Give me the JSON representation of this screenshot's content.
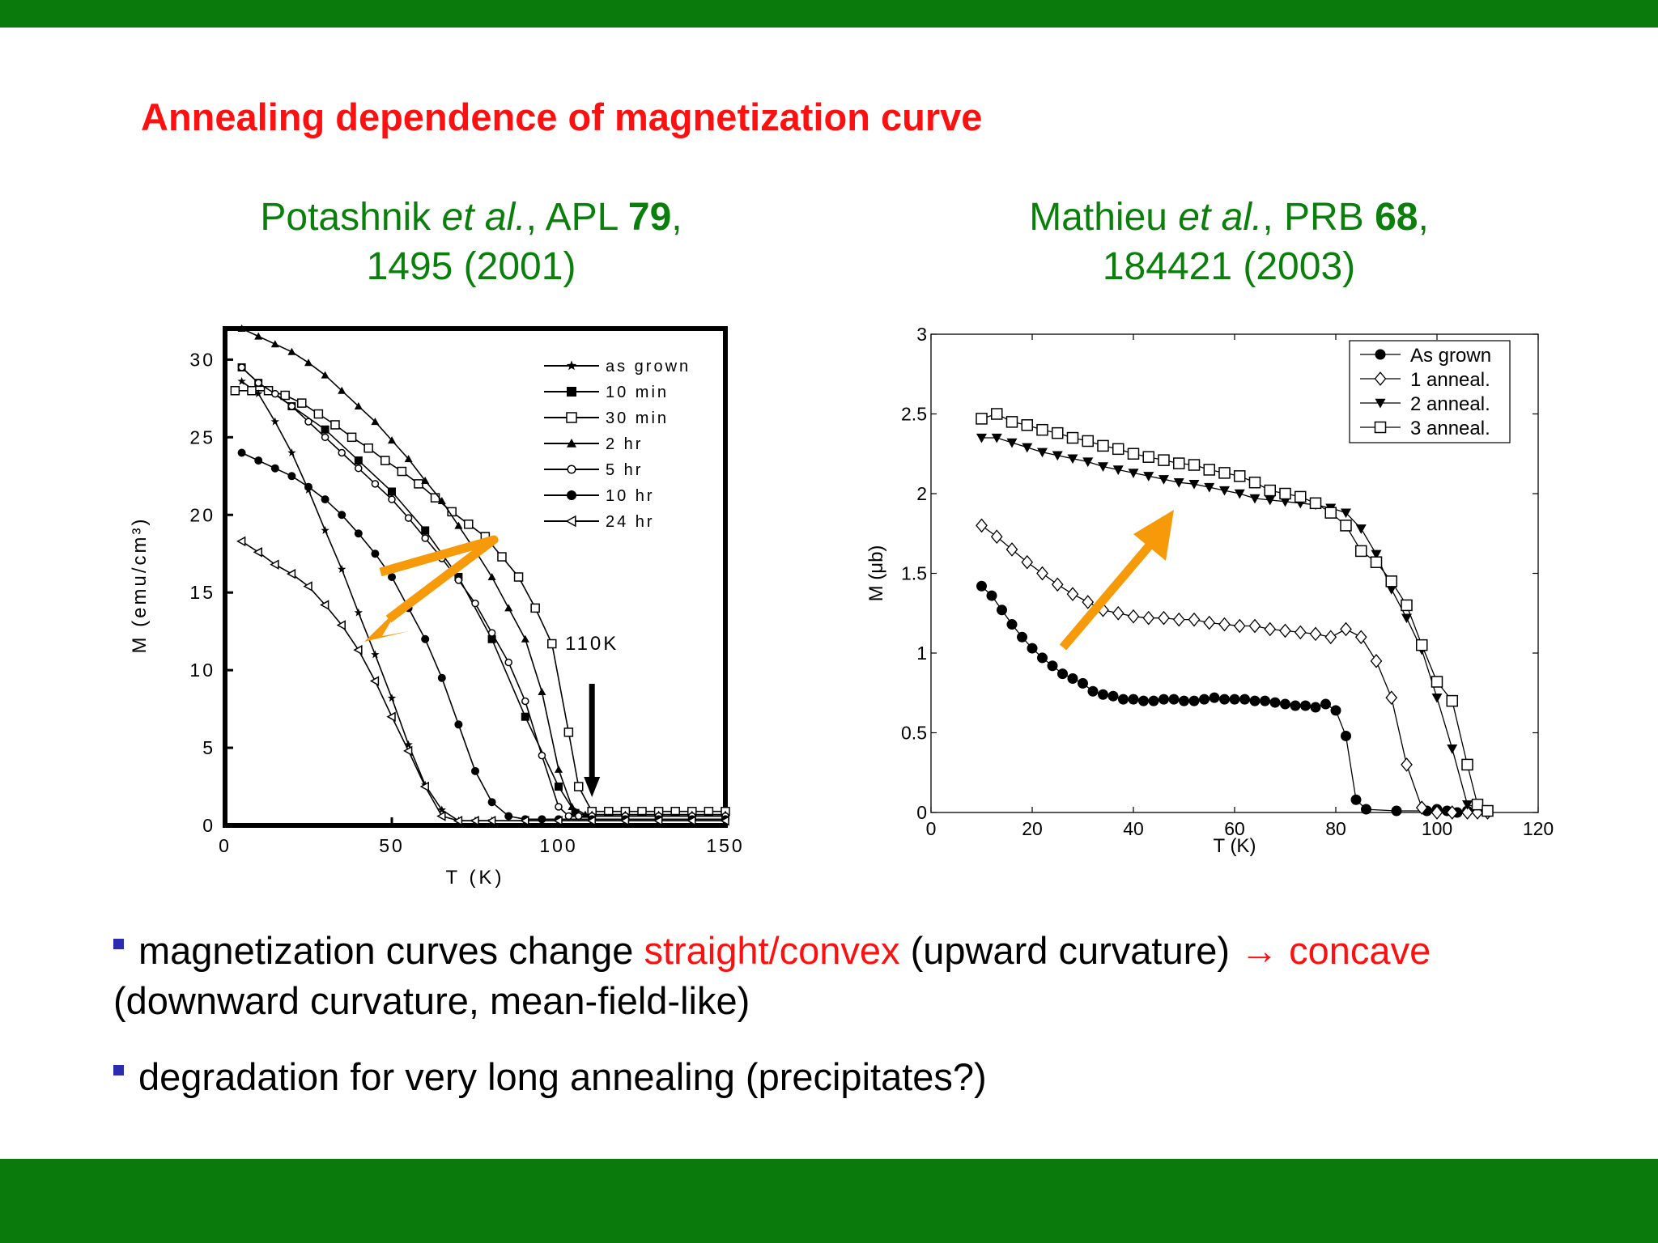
{
  "slide": {
    "title": "Annealing dependence of magnetization curve",
    "ref_left": {
      "authors": "Potashnik",
      "etal": "et al.",
      "journal": ", APL ",
      "volume": "79",
      "comma": ",",
      "line2": "1495 (2001)"
    },
    "ref_right": {
      "authors": "Mathieu",
      "etal": "et al.",
      "journal": ", PRB ",
      "volume": "68",
      "comma": ",",
      "line2": "184421 (2003)"
    },
    "bullets": [
      {
        "pre": "magnetization curves change ",
        "red1": "straight/convex",
        "mid": " (upward curvature) ",
        "red2": "→ concave",
        "post": " (downward curvature, mean-field-like)"
      },
      {
        "text": "degradation for very long annealing (precipitates?)"
      }
    ],
    "colors": {
      "bars": "#097a0b",
      "title": "#ff1010",
      "refs": "#0b7f0b",
      "bullet": "#2b2bb0",
      "arrow": "#f79a0a"
    }
  },
  "chart_data": [
    {
      "type": "line",
      "xlabel": "T (K)",
      "ylabel": "M (emu/cm³)",
      "xlim": [
        0,
        150
      ],
      "ylim": [
        0,
        32
      ],
      "xticks": [
        0,
        50,
        100,
        150
      ],
      "yticks": [
        0,
        5,
        10,
        15,
        20,
        25,
        30
      ],
      "annotation": "110K",
      "series": [
        {
          "name": "as grown",
          "marker": "star",
          "x": [
            5,
            10,
            15,
            20,
            25,
            30,
            35,
            40,
            45,
            50,
            55,
            60,
            65,
            70,
            75,
            80,
            90,
            100,
            110,
            120,
            130,
            140,
            150
          ],
          "y": [
            28.6,
            27.8,
            26,
            24,
            21.6,
            19,
            16.5,
            13.7,
            11,
            8.2,
            5.2,
            2.6,
            1.0,
            0.3,
            0.3,
            0.3,
            0.3,
            0.3,
            0.3,
            0.3,
            0.3,
            0.3,
            0.3
          ]
        },
        {
          "name": "10 min",
          "marker": "filled-square",
          "x": [
            5,
            10,
            20,
            30,
            40,
            50,
            60,
            70,
            80,
            90,
            100,
            105,
            110,
            120,
            130,
            140,
            150
          ],
          "y": [
            29.5,
            28.5,
            27,
            25.5,
            23.5,
            21.5,
            19,
            16,
            12,
            7,
            2.5,
            0.8,
            0.6,
            0.6,
            0.6,
            0.6,
            0.6
          ]
        },
        {
          "name": "30 min",
          "marker": "open-square",
          "x": [
            3,
            8,
            13,
            18,
            23,
            28,
            33,
            38,
            43,
            48,
            53,
            58,
            63,
            68,
            73,
            78,
            83,
            88,
            93,
            98,
            103,
            106,
            110,
            115,
            120,
            125,
            130,
            135,
            140,
            145,
            150
          ],
          "y": [
            28,
            28,
            28,
            27.7,
            27.2,
            26.5,
            25.8,
            25,
            24.3,
            23.5,
            22.8,
            22,
            21.1,
            20.2,
            19.4,
            18.6,
            17.3,
            16,
            14,
            11.7,
            6,
            2.5,
            0.9,
            0.9,
            0.9,
            0.9,
            0.9,
            0.9,
            0.9,
            0.9,
            0.9
          ]
        },
        {
          "name": "2 hr",
          "marker": "filled-triangle",
          "x": [
            5,
            10,
            15,
            20,
            25,
            30,
            35,
            40,
            45,
            50,
            55,
            60,
            65,
            70,
            75,
            80,
            85,
            90,
            95,
            100,
            104,
            108,
            110,
            120,
            130,
            140,
            150
          ],
          "y": [
            32,
            31.5,
            31,
            30.5,
            29.8,
            29,
            28,
            27,
            26,
            24.8,
            23.6,
            22.2,
            20.9,
            19.3,
            17.7,
            16,
            14,
            12,
            8.6,
            3.6,
            1.2,
            0.7,
            0.7,
            0.7,
            0.7,
            0.7,
            0.7
          ]
        },
        {
          "name": "5 hr",
          "marker": "open-circle",
          "x": [
            5,
            10,
            15,
            20,
            25,
            30,
            35,
            40,
            45,
            50,
            55,
            60,
            65,
            70,
            75,
            80,
            85,
            90,
            95,
            100,
            103,
            106,
            110,
            120,
            130,
            140,
            150
          ],
          "y": [
            29.5,
            28.5,
            27.8,
            27,
            26,
            25,
            24,
            23,
            22,
            21,
            19.8,
            18.5,
            17.2,
            15.8,
            14.3,
            12.4,
            10.5,
            8,
            4.5,
            1.2,
            0.6,
            0.6,
            0.6,
            0.6,
            0.6,
            0.6,
            0.6
          ]
        },
        {
          "name": "10 hr",
          "marker": "filled-circle",
          "x": [
            5,
            10,
            15,
            20,
            25,
            30,
            35,
            40,
            45,
            50,
            55,
            60,
            65,
            70,
            75,
            80,
            85,
            90,
            95,
            100,
            110,
            120,
            130,
            140,
            150
          ],
          "y": [
            24,
            23.5,
            23,
            22.5,
            21.8,
            21,
            20,
            18.8,
            17.5,
            16,
            14,
            12,
            9.5,
            6.5,
            3.5,
            1.5,
            0.6,
            0.4,
            0.4,
            0.4,
            0.4,
            0.4,
            0.4,
            0.4,
            0.4
          ]
        },
        {
          "name": "24 hr",
          "marker": "open-triangle",
          "x": [
            5,
            10,
            15,
            20,
            25,
            30,
            35,
            40,
            45,
            50,
            55,
            60,
            65,
            70,
            75,
            80,
            90,
            100,
            110,
            120,
            130,
            140,
            150
          ],
          "y": [
            18.3,
            17.6,
            16.8,
            16.2,
            15.4,
            14.2,
            12.9,
            11.3,
            9.3,
            7,
            4.8,
            2.5,
            0.6,
            0.3,
            0.3,
            0.3,
            0.3,
            0.3,
            0.3,
            0.3,
            0.3,
            0.3,
            0.3
          ]
        }
      ]
    },
    {
      "type": "line",
      "xlabel": "T (K)",
      "ylabel": "M (μb)",
      "xlim": [
        0,
        120
      ],
      "ylim": [
        0,
        3
      ],
      "xticks": [
        0,
        20,
        40,
        60,
        80,
        100,
        120
      ],
      "yticks": [
        0,
        0.5,
        1,
        1.5,
        2,
        2.5,
        3
      ],
      "series": [
        {
          "name": "As grown",
          "marker": "filled-circle",
          "x": [
            10,
            12,
            14,
            16,
            18,
            20,
            22,
            24,
            26,
            28,
            30,
            32,
            34,
            36,
            38,
            40,
            42,
            44,
            46,
            48,
            50,
            52,
            54,
            56,
            58,
            60,
            62,
            64,
            66,
            68,
            70,
            72,
            74,
            76,
            78,
            80,
            82,
            84,
            86,
            92,
            98,
            100,
            102,
            104,
            106,
            108,
            110
          ],
          "y": [
            1.42,
            1.36,
            1.27,
            1.18,
            1.1,
            1.03,
            0.97,
            0.92,
            0.87,
            0.84,
            0.81,
            0.76,
            0.74,
            0.73,
            0.71,
            0.71,
            0.7,
            0.7,
            0.71,
            0.71,
            0.7,
            0.7,
            0.71,
            0.72,
            0.71,
            0.71,
            0.71,
            0.7,
            0.7,
            0.69,
            0.68,
            0.67,
            0.67,
            0.66,
            0.68,
            0.64,
            0.48,
            0.08,
            0.02,
            0.01,
            0.01,
            0.02,
            0.01,
            0.0,
            0.01,
            0.02,
            0.01
          ]
        },
        {
          "name": "1 anneal.",
          "marker": "open-diamond",
          "x": [
            10,
            13,
            16,
            19,
            22,
            25,
            28,
            31,
            34,
            37,
            40,
            43,
            46,
            49,
            52,
            55,
            58,
            61,
            64,
            67,
            70,
            73,
            76,
            79,
            82,
            85,
            88,
            91,
            94,
            97,
            100,
            103,
            106,
            108,
            110
          ],
          "y": [
            1.8,
            1.73,
            1.65,
            1.57,
            1.5,
            1.43,
            1.37,
            1.32,
            1.27,
            1.25,
            1.23,
            1.22,
            1.22,
            1.21,
            1.21,
            1.19,
            1.18,
            1.17,
            1.17,
            1.15,
            1.14,
            1.13,
            1.12,
            1.1,
            1.15,
            1.1,
            0.95,
            0.72,
            0.3,
            0.03,
            0.0,
            0.0,
            0.0,
            0.0,
            0.0
          ]
        },
        {
          "name": "2 anneal.",
          "marker": "filled-triangle-down",
          "x": [
            10,
            13,
            16,
            19,
            22,
            25,
            28,
            31,
            34,
            37,
            40,
            43,
            46,
            49,
            52,
            55,
            58,
            61,
            64,
            67,
            70,
            73,
            76,
            79,
            82,
            85,
            88,
            91,
            94,
            97,
            100,
            103,
            106,
            109,
            110
          ],
          "y": [
            2.35,
            2.35,
            2.32,
            2.29,
            2.26,
            2.24,
            2.22,
            2.2,
            2.17,
            2.15,
            2.13,
            2.11,
            2.09,
            2.07,
            2.06,
            2.04,
            2.02,
            2.0,
            1.97,
            1.96,
            1.95,
            1.94,
            1.93,
            1.91,
            1.88,
            1.78,
            1.62,
            1.4,
            1.22,
            1.02,
            0.72,
            0.4,
            0.05,
            0.02,
            0.01
          ]
        },
        {
          "name": "3 anneal.",
          "marker": "open-square",
          "x": [
            10,
            13,
            16,
            19,
            22,
            25,
            28,
            31,
            34,
            37,
            40,
            43,
            46,
            49,
            52,
            55,
            58,
            61,
            64,
            67,
            70,
            73,
            76,
            79,
            82,
            85,
            88,
            91,
            94,
            97,
            100,
            103,
            106,
            108,
            110
          ],
          "y": [
            2.47,
            2.5,
            2.45,
            2.43,
            2.4,
            2.38,
            2.35,
            2.33,
            2.3,
            2.28,
            2.25,
            2.23,
            2.21,
            2.19,
            2.18,
            2.15,
            2.13,
            2.11,
            2.07,
            2.02,
            2.0,
            1.98,
            1.94,
            1.88,
            1.8,
            1.64,
            1.57,
            1.45,
            1.3,
            1.05,
            0.82,
            0.7,
            0.3,
            0.05,
            0.01
          ]
        }
      ]
    }
  ]
}
